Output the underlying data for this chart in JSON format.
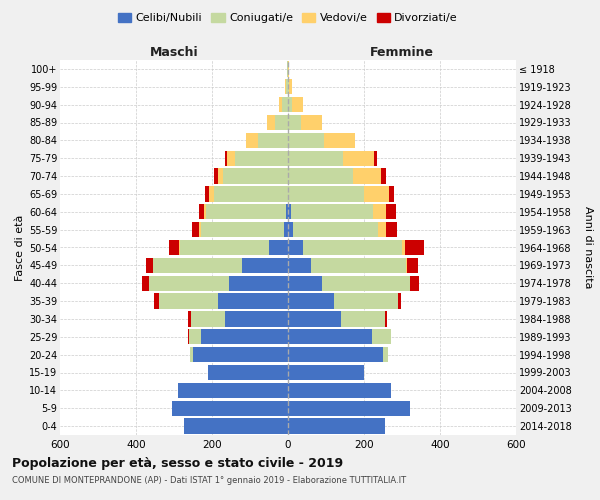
{
  "age_groups": [
    "0-4",
    "5-9",
    "10-14",
    "15-19",
    "20-24",
    "25-29",
    "30-34",
    "35-39",
    "40-44",
    "45-49",
    "50-54",
    "55-59",
    "60-64",
    "65-69",
    "70-74",
    "75-79",
    "80-84",
    "85-89",
    "90-94",
    "95-99",
    "100+"
  ],
  "birth_years": [
    "2014-2018",
    "2009-2013",
    "2004-2008",
    "1999-2003",
    "1994-1998",
    "1989-1993",
    "1984-1988",
    "1979-1983",
    "1974-1978",
    "1969-1973",
    "1964-1968",
    "1959-1963",
    "1954-1958",
    "1949-1953",
    "1944-1948",
    "1939-1943",
    "1934-1938",
    "1929-1933",
    "1924-1928",
    "1919-1923",
    "≤ 1918"
  ],
  "males": {
    "celibe": [
      275,
      305,
      290,
      210,
      250,
      230,
      165,
      185,
      155,
      120,
      50,
      10,
      5,
      0,
      0,
      0,
      0,
      0,
      0,
      0,
      0
    ],
    "coniugato": [
      0,
      0,
      0,
      0,
      8,
      30,
      90,
      155,
      210,
      235,
      235,
      220,
      210,
      195,
      170,
      140,
      80,
      35,
      15,
      5,
      2
    ],
    "vedovo": [
      0,
      0,
      0,
      0,
      0,
      0,
      0,
      0,
      0,
      0,
      2,
      3,
      5,
      12,
      15,
      20,
      30,
      20,
      8,
      2,
      0
    ],
    "divorziato": [
      0,
      0,
      0,
      0,
      0,
      2,
      8,
      12,
      18,
      20,
      25,
      20,
      15,
      12,
      10,
      5,
      0,
      0,
      0,
      0,
      0
    ]
  },
  "females": {
    "nubile": [
      255,
      320,
      270,
      200,
      250,
      220,
      140,
      120,
      90,
      60,
      40,
      12,
      8,
      0,
      0,
      0,
      0,
      0,
      0,
      0,
      0
    ],
    "coniugata": [
      0,
      0,
      0,
      0,
      12,
      50,
      115,
      170,
      230,
      250,
      260,
      225,
      215,
      200,
      170,
      145,
      95,
      35,
      10,
      2,
      0
    ],
    "vedova": [
      0,
      0,
      0,
      0,
      0,
      0,
      0,
      0,
      2,
      2,
      8,
      20,
      35,
      65,
      75,
      80,
      80,
      55,
      30,
      8,
      2
    ],
    "divorziata": [
      0,
      0,
      0,
      0,
      0,
      2,
      5,
      8,
      22,
      30,
      50,
      30,
      25,
      15,
      12,
      8,
      0,
      0,
      0,
      0,
      0
    ]
  },
  "colors": {
    "celibe": "#4472C4",
    "coniugato": "#c5d9a0",
    "vedovo": "#FFD06B",
    "divorziato": "#CC0000"
  },
  "xlim": 600,
  "title": "Popolazione per età, sesso e stato civile - 2019",
  "subtitle": "COMUNE DI MONTEPRANDONE (AP) - Dati ISTAT 1° gennaio 2019 - Elaborazione TUTTITALIA.IT",
  "ylabel_left": "Fasce di età",
  "ylabel_right": "Anni di nascita",
  "xlabel_left": "Maschi",
  "xlabel_right": "Femmine",
  "legend_labels": [
    "Celibi/Nubili",
    "Coniugati/e",
    "Vedovi/e",
    "Divorziati/e"
  ],
  "bg_color": "#f0f0f0",
  "plot_bg_color": "#ffffff"
}
